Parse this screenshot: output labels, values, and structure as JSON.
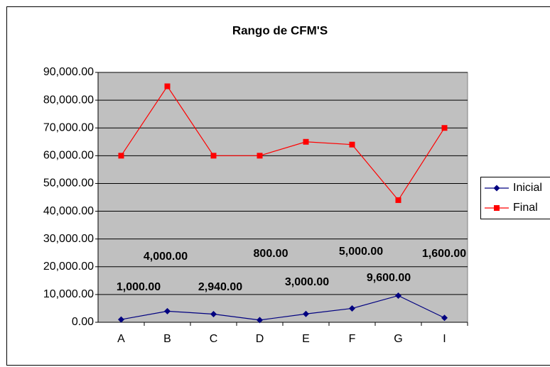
{
  "chart_data": {
    "type": "line",
    "title": "Rango de CFM'S",
    "categories": [
      "A",
      "B",
      "C",
      "D",
      "E",
      "F",
      "G",
      "I"
    ],
    "series": [
      {
        "name": "Inicial",
        "color": "#000080",
        "marker": "diamond",
        "values": [
          1000,
          4000,
          2940,
          800,
          3000,
          5000,
          9600,
          1600
        ],
        "value_labels": [
          "1,000.00",
          "4,000.00",
          "2,940.00",
          "800.00",
          "3,000.00",
          "5,000.00",
          "9,600.00",
          "1,600.00"
        ]
      },
      {
        "name": "Final",
        "color": "#ff0000",
        "marker": "square",
        "values": [
          60000,
          85000,
          60000,
          60000,
          65000,
          64000,
          44000,
          70000
        ]
      }
    ],
    "ylim": [
      0,
      90000
    ],
    "yticks": [
      {
        "value": 0,
        "label": "0.00"
      },
      {
        "value": 10000,
        "label": "10,000.00"
      },
      {
        "value": 20000,
        "label": "20,000.00"
      },
      {
        "value": 30000,
        "label": "30,000.00"
      },
      {
        "value": 40000,
        "label": "40,000.00"
      },
      {
        "value": 50000,
        "label": "50,000.00"
      },
      {
        "value": 60000,
        "label": "60,000.00"
      },
      {
        "value": 70000,
        "label": "70,000.00"
      },
      {
        "value": 80000,
        "label": "80,000.00"
      },
      {
        "value": 90000,
        "label": "90,000.00"
      }
    ],
    "grid": true,
    "legend": "right",
    "plot_background": "#c0c0c0"
  }
}
